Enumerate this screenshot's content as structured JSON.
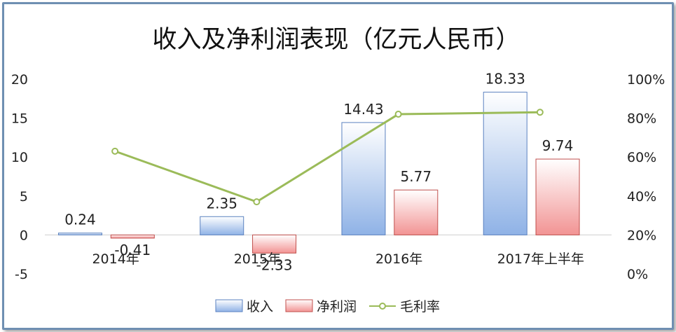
{
  "chart_data": {
    "type": "bar",
    "title": "收入及净利润表现（亿元人民币）",
    "categories": [
      "2014年",
      "2015年",
      "2016年",
      "2017年上半年"
    ],
    "series": [
      {
        "name": "收入",
        "type": "bar",
        "axis": "left",
        "values": [
          0.24,
          2.35,
          14.43,
          18.33
        ],
        "labels": [
          "0.24",
          "2.35",
          "14.43",
          "18.33"
        ],
        "color": "#a9c4ea"
      },
      {
        "name": "净利润",
        "type": "bar",
        "axis": "left",
        "values": [
          -0.41,
          -2.33,
          5.77,
          9.74
        ],
        "labels": [
          "-0.41",
          "-2.33",
          "5.77",
          "9.74"
        ],
        "color": "#f4a9a9"
      },
      {
        "name": "毛利率",
        "type": "line",
        "axis": "right",
        "values": [
          0.63,
          0.37,
          0.82,
          0.83
        ],
        "color": "#9bbb59"
      }
    ],
    "y_left": {
      "min": -5,
      "max": 20,
      "ticks": [
        "-5",
        "0",
        "5",
        "10",
        "15",
        "20"
      ]
    },
    "y_right": {
      "min": 0,
      "max": 1,
      "ticks": [
        "0%",
        "20%",
        "40%",
        "60%",
        "80%",
        "100%"
      ]
    },
    "legend": "bottom",
    "grid": false
  }
}
